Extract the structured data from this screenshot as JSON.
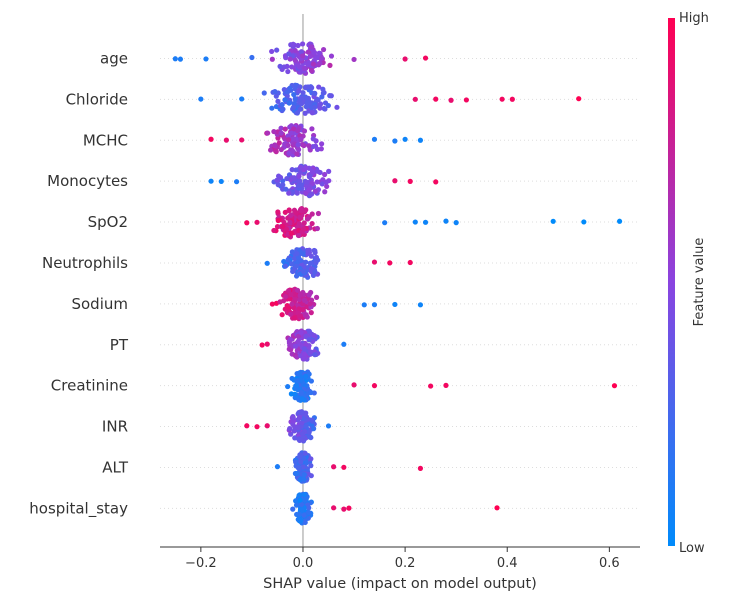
{
  "chart_data": {
    "type": "scatter",
    "subtype": "shap-beeswarm",
    "title": "",
    "xlabel": "SHAP value (impact on model output)",
    "xlim": [
      -0.28,
      0.66
    ],
    "xticks": [
      {
        "value": -0.2,
        "label": "−0.2"
      },
      {
        "value": 0.0,
        "label": "0.0"
      },
      {
        "value": 0.2,
        "label": "0.2"
      },
      {
        "value": 0.4,
        "label": "0.4"
      },
      {
        "value": 0.6,
        "label": "0.6"
      }
    ],
    "colorbar": {
      "label": "Feature value",
      "high_label": "High",
      "low_label": "Low",
      "high_color": "#ff0052",
      "mid_color": "#8a44e0",
      "low_color": "#008bfb"
    },
    "zero_line": true,
    "features": [
      {
        "name": "age",
        "min": -0.25,
        "max": 0.24,
        "center": 0.0,
        "spread": 0.08,
        "lowside": "left",
        "points": [
          [
            -0.25,
            0.1
          ],
          [
            -0.24,
            0.1
          ],
          [
            -0.19,
            0.1
          ],
          [
            -0.1,
            0.2
          ],
          [
            -0.06,
            0.6
          ],
          [
            0.1,
            0.6
          ],
          [
            0.2,
            0.9
          ],
          [
            0.24,
            0.95
          ]
        ]
      },
      {
        "name": "Chloride",
        "min": -0.2,
        "max": 0.54,
        "center": 0.0,
        "spread": 0.08,
        "lowside": "left",
        "points": [
          [
            -0.2,
            0.1
          ],
          [
            -0.12,
            0.1
          ],
          [
            0.22,
            0.9
          ],
          [
            0.26,
            0.95
          ],
          [
            0.29,
            0.9
          ],
          [
            0.32,
            0.95
          ],
          [
            0.39,
            0.95
          ],
          [
            0.41,
            0.95
          ],
          [
            0.54,
            1.0
          ]
        ]
      },
      {
        "name": "MCHC",
        "min": -0.18,
        "max": 0.23,
        "center": -0.02,
        "spread": 0.07,
        "lowside": "right",
        "points": [
          [
            -0.18,
            0.95
          ],
          [
            -0.15,
            0.9
          ],
          [
            -0.12,
            0.9
          ],
          [
            0.14,
            0.1
          ],
          [
            0.18,
            0.1
          ],
          [
            0.2,
            0.05
          ],
          [
            0.23,
            0.05
          ]
        ]
      },
      {
        "name": "Monocytes",
        "min": -0.18,
        "max": 0.26,
        "center": 0.0,
        "spread": 0.07,
        "lowside": "left",
        "points": [
          [
            -0.18,
            0.05
          ],
          [
            -0.16,
            0.05
          ],
          [
            -0.13,
            0.1
          ],
          [
            0.18,
            0.9
          ],
          [
            0.21,
            0.95
          ],
          [
            0.26,
            0.95
          ]
        ]
      },
      {
        "name": "SpO2",
        "min": -0.11,
        "max": 0.62,
        "center": -0.02,
        "spread": 0.06,
        "lowside": "right",
        "points": [
          [
            -0.11,
            0.95
          ],
          [
            -0.09,
            0.9
          ],
          [
            0.16,
            0.1
          ],
          [
            0.22,
            0.05
          ],
          [
            0.24,
            0.05
          ],
          [
            0.28,
            0.05
          ],
          [
            0.3,
            0.05
          ],
          [
            0.49,
            0.0
          ],
          [
            0.55,
            0.0
          ],
          [
            0.62,
            0.0
          ]
        ]
      },
      {
        "name": "Neutrophils",
        "min": -0.07,
        "max": 0.22,
        "center": 0.0,
        "spread": 0.05,
        "lowside": "left",
        "points": [
          [
            -0.07,
            0.1
          ],
          [
            0.14,
            0.9
          ],
          [
            0.17,
            0.95
          ],
          [
            0.21,
            0.95
          ]
        ]
      },
      {
        "name": "Sodium",
        "min": -0.06,
        "max": 0.23,
        "center": -0.01,
        "spread": 0.05,
        "lowside": "right",
        "points": [
          [
            -0.06,
            0.95
          ],
          [
            0.12,
            0.1
          ],
          [
            0.14,
            0.1
          ],
          [
            0.18,
            0.05
          ],
          [
            0.23,
            0.05
          ]
        ]
      },
      {
        "name": "PT",
        "min": -0.08,
        "max": 0.08,
        "center": 0.0,
        "spread": 0.04,
        "lowside": "right",
        "points": [
          [
            -0.08,
            0.95
          ],
          [
            -0.07,
            0.9
          ],
          [
            0.08,
            0.1
          ]
        ]
      },
      {
        "name": "Creatinine",
        "min": -0.03,
        "max": 0.61,
        "center": 0.0,
        "spread": 0.03,
        "lowside": "left",
        "points": [
          [
            -0.03,
            0.1
          ],
          [
            0.1,
            0.9
          ],
          [
            0.14,
            0.95
          ],
          [
            0.25,
            0.95
          ],
          [
            0.28,
            0.95
          ],
          [
            0.61,
            1.0
          ]
        ]
      },
      {
        "name": "INR",
        "min": -0.11,
        "max": 0.05,
        "center": 0.0,
        "spread": 0.03,
        "lowside": "right",
        "points": [
          [
            -0.11,
            0.95
          ],
          [
            -0.09,
            0.95
          ],
          [
            -0.07,
            0.9
          ],
          [
            0.05,
            0.1
          ]
        ]
      },
      {
        "name": "ALT",
        "min": -0.05,
        "max": 0.23,
        "center": 0.0,
        "spread": 0.02,
        "lowside": "left",
        "points": [
          [
            -0.05,
            0.1
          ],
          [
            0.06,
            0.9
          ],
          [
            0.08,
            0.95
          ],
          [
            0.23,
            0.95
          ]
        ]
      },
      {
        "name": "hospital_stay",
        "min": -0.02,
        "max": 0.38,
        "center": 0.0,
        "spread": 0.02,
        "lowside": "left",
        "points": [
          [
            -0.02,
            0.2
          ],
          [
            0.06,
            0.9
          ],
          [
            0.08,
            0.9
          ],
          [
            0.09,
            0.95
          ],
          [
            0.38,
            1.0
          ]
        ]
      }
    ]
  }
}
